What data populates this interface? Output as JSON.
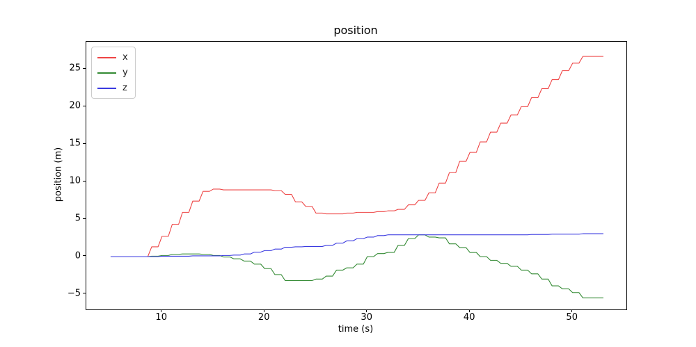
{
  "chart_data": {
    "type": "line",
    "title": "position",
    "xlabel": "time (s)",
    "ylabel": "position (m)",
    "xlim": [
      2.63,
      55.24
    ],
    "ylim": [
      -7.05,
      28.66
    ],
    "xticks": [
      10,
      20,
      30,
      40,
      50
    ],
    "xtick_labels": [
      "10",
      "20",
      "30",
      "40",
      "50"
    ],
    "yticks": [
      -5,
      0,
      5,
      10,
      15,
      20,
      25
    ],
    "ytick_labels": [
      "−5",
      "0",
      "5",
      "10",
      "15",
      "20",
      "25"
    ],
    "grid": false,
    "legend_position": "upper left",
    "line_style": "zero-order-hold steps, hold 0.62 s then ramp",
    "x": [
      5,
      6,
      7,
      8,
      9,
      10,
      11,
      12,
      13,
      14,
      15,
      16,
      17,
      18,
      19,
      20,
      21,
      22,
      23,
      24,
      25,
      26,
      27,
      28,
      29,
      30,
      31,
      32,
      33,
      34,
      35,
      36,
      37,
      38,
      39,
      40,
      41,
      42,
      43,
      44,
      45,
      46,
      47,
      48,
      49,
      50,
      51,
      52,
      53
    ],
    "series": [
      {
        "name": "x",
        "color": "#ee4444",
        "values": [
          0,
          0,
          0,
          0,
          1.3,
          2.7,
          4.3,
          5.9,
          7.4,
          8.7,
          9.0,
          8.9,
          8.9,
          8.9,
          8.9,
          8.9,
          8.8,
          8.3,
          7.3,
          6.7,
          5.8,
          5.7,
          5.7,
          5.8,
          5.9,
          5.9,
          6.0,
          6.1,
          6.3,
          6.9,
          7.5,
          8.5,
          9.8,
          11.2,
          12.7,
          13.9,
          15.3,
          16.6,
          17.8,
          18.9,
          20.0,
          21.2,
          22.4,
          23.6,
          24.8,
          25.8,
          26.7,
          26.7,
          26.7
        ]
      },
      {
        "name": "y",
        "color": "#338a33",
        "values": [
          0,
          0,
          0,
          0,
          0.05,
          0.15,
          0.3,
          0.35,
          0.35,
          0.3,
          0.15,
          -0.05,
          -0.3,
          -0.6,
          -1.0,
          -1.6,
          -2.4,
          -3.2,
          -3.2,
          -3.2,
          -3.0,
          -2.6,
          -1.8,
          -1.5,
          -1.0,
          0.0,
          0.4,
          0.56,
          1.5,
          2.4,
          2.9,
          2.6,
          2.5,
          1.7,
          1.2,
          0.55,
          0.0,
          -0.5,
          -0.9,
          -1.3,
          -1.8,
          -2.3,
          -3.0,
          -3.9,
          -4.3,
          -4.8,
          -5.5,
          -5.5,
          -5.5
        ]
      },
      {
        "name": "z",
        "color": "#3a3ae0",
        "values": [
          0,
          0,
          0,
          0,
          0.0,
          0.05,
          0.05,
          0.05,
          0.1,
          0.1,
          0.1,
          0.15,
          0.2,
          0.35,
          0.6,
          0.8,
          1.0,
          1.25,
          1.3,
          1.35,
          1.35,
          1.5,
          1.8,
          2.1,
          2.4,
          2.6,
          2.8,
          2.9,
          2.9,
          2.9,
          2.9,
          2.9,
          2.9,
          2.9,
          2.9,
          2.9,
          2.9,
          2.9,
          2.9,
          2.9,
          2.9,
          2.95,
          2.95,
          3.0,
          3.0,
          3.0,
          3.05,
          3.05,
          3.05
        ]
      }
    ]
  }
}
